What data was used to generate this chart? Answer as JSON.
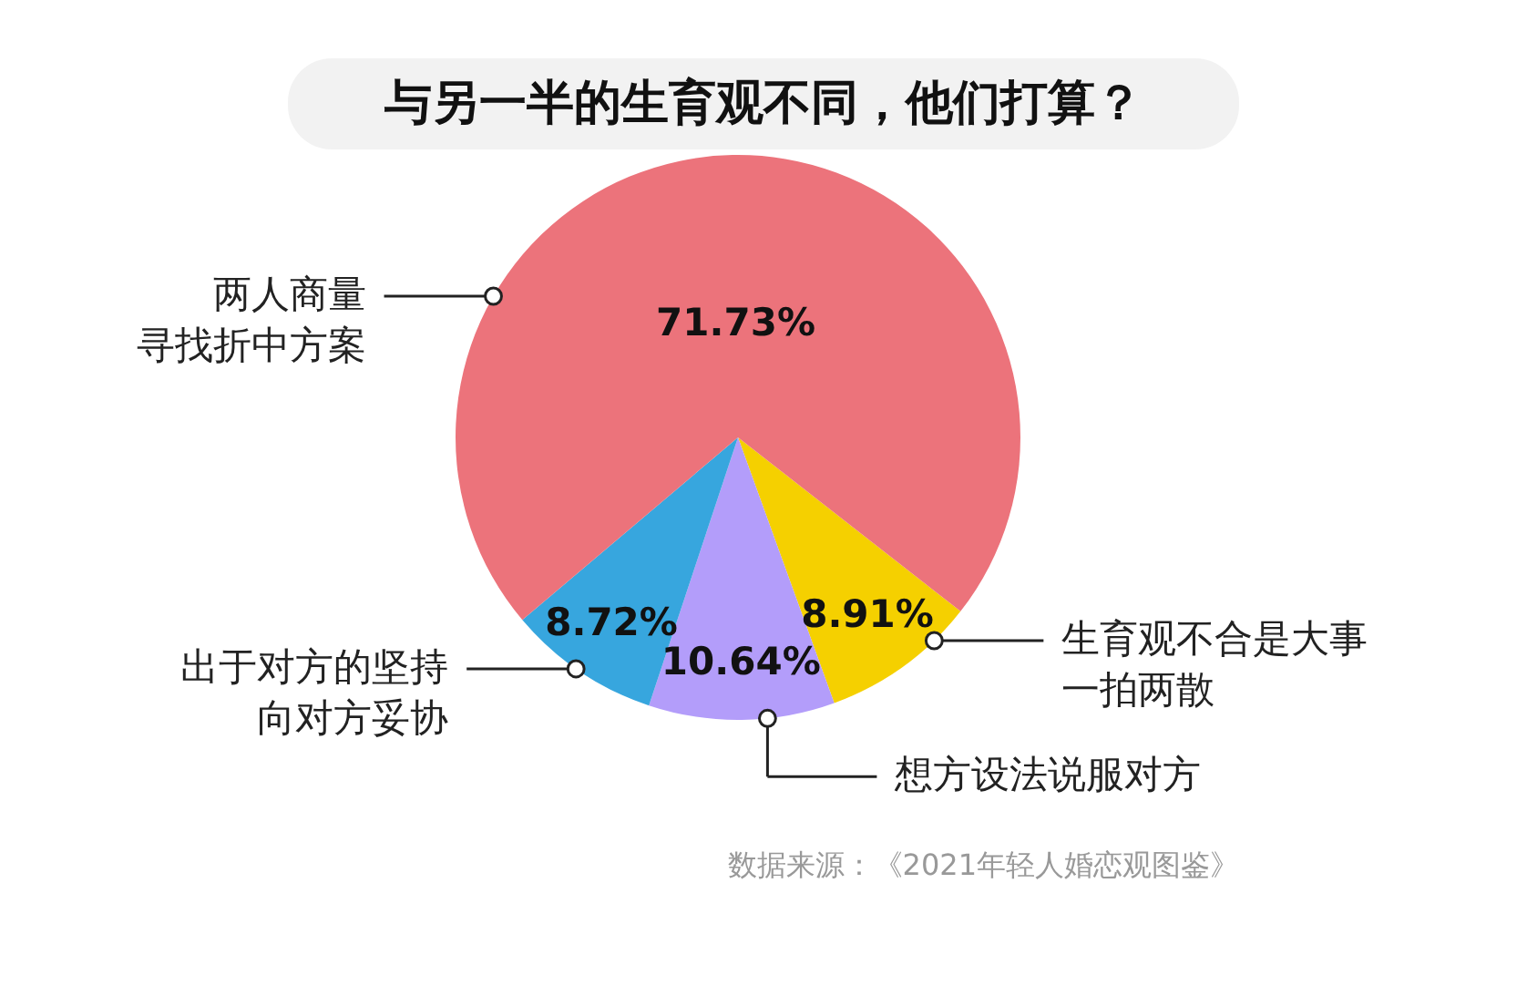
{
  "chart_data": {
    "type": "pie",
    "title": "与另一半的生育观不同，他们打算？",
    "categories": [
      "生育观不合是大事一拍两散",
      "想方设法说服对方",
      "出于对方的坚持向对方妥协",
      "两人商量寻找折中方案"
    ],
    "values": [
      8.91,
      10.64,
      8.72,
      71.73
    ],
    "value_labels": [
      "8.91%",
      "10.64%",
      "8.72%",
      "71.73%"
    ],
    "colors": [
      "#f5d000",
      "#b39dfa",
      "#37a6de",
      "#ec737b"
    ],
    "annotations": [
      "数据来源：《2021年轻人婚恋观图鉴》"
    ]
  }
}
